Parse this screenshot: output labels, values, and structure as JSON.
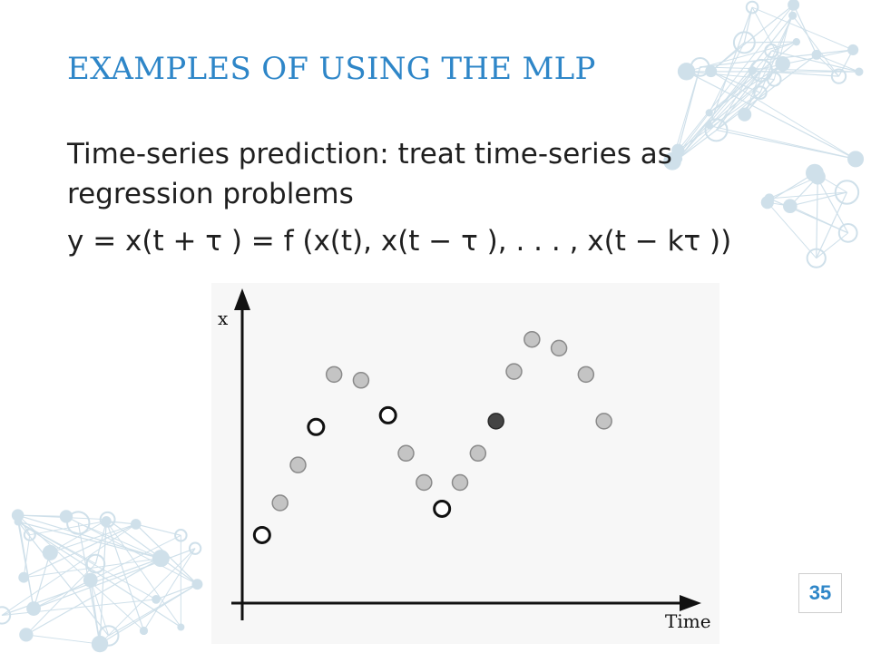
{
  "slide": {
    "title": "EXAMPLES OF USING THE MLP",
    "line1": "Time-series prediction: treat time-series as regression problems",
    "formula": "y = x(t + τ ) = f (x(t), x(t − τ ), . . . , x(t − kτ ))",
    "page_number": "35"
  },
  "colors": {
    "title": "#2e86c8",
    "text": "#1f1f1f",
    "point_fill": "#c4c4c4",
    "point_stroke": "#8a8a8a",
    "input_point_stroke": "#111111",
    "target_point_fill": "#444444",
    "decoration": "#cfe0ea"
  },
  "chart_data": {
    "type": "scatter",
    "xlabel": "Time",
    "ylabel": "x",
    "grid": false,
    "legend": "none",
    "xlim": [
      0,
      24
    ],
    "ylim": [
      0,
      10
    ],
    "points": [
      {
        "t": 1,
        "x": 2.3,
        "kind": "input"
      },
      {
        "t": 2,
        "x": 3.4,
        "kind": "data"
      },
      {
        "t": 3,
        "x": 4.7,
        "kind": "data"
      },
      {
        "t": 4,
        "x": 6.0,
        "kind": "input"
      },
      {
        "t": 5,
        "x": 7.8,
        "kind": "data"
      },
      {
        "t": 6.5,
        "x": 7.6,
        "kind": "data"
      },
      {
        "t": 8,
        "x": 6.4,
        "kind": "input"
      },
      {
        "t": 9,
        "x": 5.1,
        "kind": "data"
      },
      {
        "t": 10,
        "x": 4.1,
        "kind": "data"
      },
      {
        "t": 11,
        "x": 3.2,
        "kind": "input"
      },
      {
        "t": 12,
        "x": 4.1,
        "kind": "data"
      },
      {
        "t": 13,
        "x": 5.1,
        "kind": "data"
      },
      {
        "t": 14,
        "x": 6.2,
        "kind": "target"
      },
      {
        "t": 15,
        "x": 7.9,
        "kind": "data"
      },
      {
        "t": 16,
        "x": 9.0,
        "kind": "data"
      },
      {
        "t": 17.5,
        "x": 8.7,
        "kind": "data"
      },
      {
        "t": 19,
        "x": 7.8,
        "kind": "data"
      },
      {
        "t": 20,
        "x": 6.2,
        "kind": "data"
      }
    ]
  }
}
